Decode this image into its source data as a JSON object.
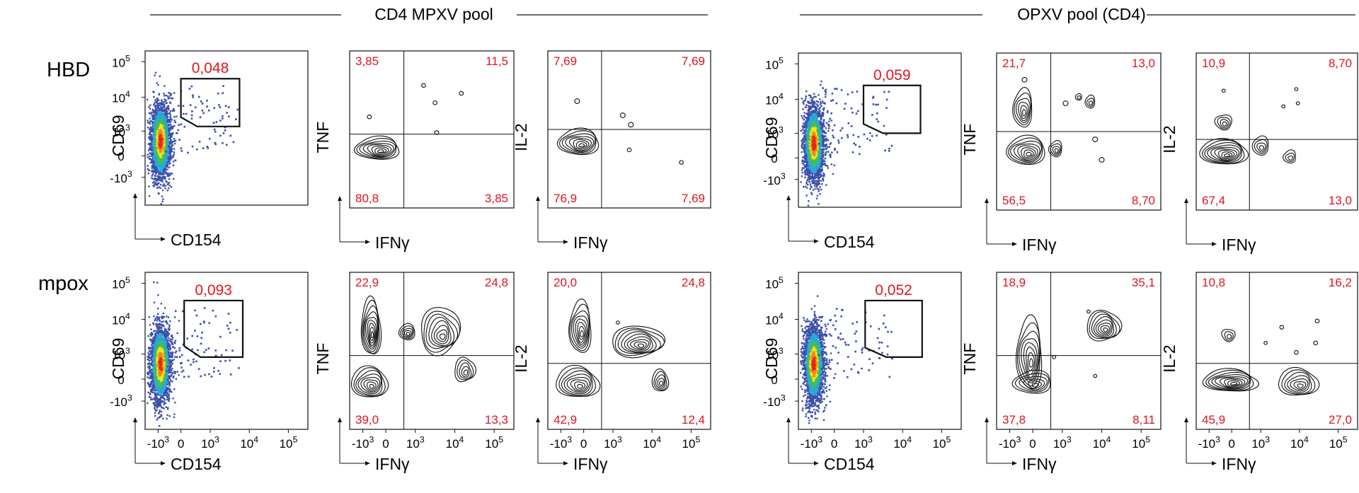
{
  "sections": [
    {
      "title": "CD4 MPXV pool"
    },
    {
      "title": "OPXV pool (CD4)"
    }
  ],
  "rows": [
    {
      "label": "HBD"
    },
    {
      "label": "mpox"
    }
  ],
  "axis_labels": {
    "cd69": "CD69",
    "cd154": "CD154",
    "tnf": "TNF",
    "il2": "IL-2",
    "ifng": "IFNγ"
  },
  "y_ticks": [
    {
      "base": "10",
      "exp": "5"
    },
    {
      "base": "10",
      "exp": "4"
    },
    {
      "base": "10",
      "exp": "3"
    },
    {
      "base": "0",
      "exp": ""
    },
    {
      "base": "-10",
      "exp": "3"
    }
  ],
  "x_ticks": [
    {
      "base": "-10",
      "exp": "3"
    },
    {
      "base": "0",
      "exp": ""
    },
    {
      "base": "10",
      "exp": "3"
    },
    {
      "base": "10",
      "exp": "4"
    },
    {
      "base": "10",
      "exp": "5"
    }
  ],
  "colors": {
    "value_text": "#e0141e",
    "contour": "#111111",
    "density_low": "#3a4fa8",
    "density_high": "#e8261c"
  },
  "chart_data": [
    {
      "type": "scatter",
      "section": "CD4 MPXV pool",
      "row": "HBD",
      "x_axis": "CD154",
      "y_axis": "CD69",
      "gate_value": "0,048"
    },
    {
      "type": "heatmap",
      "section": "CD4 MPXV pool",
      "row": "HBD",
      "x_axis": "IFNγ",
      "y_axis": "TNF",
      "quadrants": {
        "top_left": "3,85",
        "top_right": "11,5",
        "bottom_left": "80,8",
        "bottom_right": "3,85"
      }
    },
    {
      "type": "heatmap",
      "section": "CD4 MPXV pool",
      "row": "HBD",
      "x_axis": "IFNγ",
      "y_axis": "IL-2",
      "quadrants": {
        "top_left": "7,69",
        "top_right": "7,69",
        "bottom_left": "76,9",
        "bottom_right": "7,69"
      }
    },
    {
      "type": "scatter",
      "section": "OPXV pool (CD4)",
      "row": "HBD",
      "x_axis": "CD154",
      "y_axis": "CD69",
      "gate_value": "0,059"
    },
    {
      "type": "heatmap",
      "section": "OPXV pool (CD4)",
      "row": "HBD",
      "x_axis": "IFNγ",
      "y_axis": "TNF",
      "quadrants": {
        "top_left": "21,7",
        "top_right": "13,0",
        "bottom_left": "56,5",
        "bottom_right": "8,70"
      }
    },
    {
      "type": "heatmap",
      "section": "OPXV pool (CD4)",
      "row": "HBD",
      "x_axis": "IFNγ",
      "y_axis": "IL-2",
      "quadrants": {
        "top_left": "10,9",
        "top_right": "8,70",
        "bottom_left": "67,4",
        "bottom_right": "13,0"
      }
    },
    {
      "type": "scatter",
      "section": "CD4 MPXV pool",
      "row": "mpox",
      "x_axis": "CD154",
      "y_axis": "CD69",
      "gate_value": "0,093"
    },
    {
      "type": "heatmap",
      "section": "CD4 MPXV pool",
      "row": "mpox",
      "x_axis": "IFNγ",
      "y_axis": "TNF",
      "quadrants": {
        "top_left": "22,9",
        "top_right": "24,8",
        "bottom_left": "39,0",
        "bottom_right": "13,3"
      }
    },
    {
      "type": "heatmap",
      "section": "CD4 MPXV pool",
      "row": "mpox",
      "x_axis": "IFNγ",
      "y_axis": "IL-2",
      "quadrants": {
        "top_left": "20,0",
        "top_right": "24,8",
        "bottom_left": "42,9",
        "bottom_right": "12,4"
      }
    },
    {
      "type": "scatter",
      "section": "OPXV pool (CD4)",
      "row": "mpox",
      "x_axis": "CD154",
      "y_axis": "CD69",
      "gate_value": "0,052"
    },
    {
      "type": "heatmap",
      "section": "OPXV pool (CD4)",
      "row": "mpox",
      "x_axis": "IFNγ",
      "y_axis": "TNF",
      "quadrants": {
        "top_left": "18,9",
        "top_right": "35,1",
        "bottom_left": "37,8",
        "bottom_right": "8,11"
      }
    },
    {
      "type": "heatmap",
      "section": "OPXV pool (CD4)",
      "row": "mpox",
      "x_axis": "IFNγ",
      "y_axis": "IL-2",
      "quadrants": {
        "top_left": "10,8",
        "top_right": "16,2",
        "bottom_left": "45,9",
        "bottom_right": "27,0"
      }
    }
  ]
}
